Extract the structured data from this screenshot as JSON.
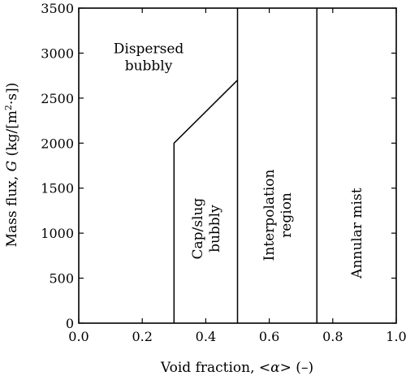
{
  "chart_data": {
    "type": "line",
    "title": "",
    "xlabel_parts": [
      "Void fraction, ",
      "<",
      "α",
      ">",
      " (–)"
    ],
    "ylabel_parts": [
      "Mass flux, ",
      "G",
      " (kg/[m",
      "2",
      "·s])"
    ],
    "xlim": [
      0.0,
      1.0
    ],
    "ylim": [
      0,
      3500
    ],
    "x_ticks": [
      0.0,
      0.2,
      0.4,
      0.6,
      0.8,
      1.0
    ],
    "x_tick_labels": [
      "0.0",
      "0.2",
      "0.4",
      "0.6",
      "0.8",
      "1.0"
    ],
    "y_ticks": [
      0,
      500,
      1000,
      1500,
      2000,
      2500,
      3000,
      3500
    ],
    "y_tick_labels": [
      "0",
      "500",
      "1000",
      "1500",
      "2000",
      "2500",
      "3000",
      "3500"
    ],
    "grid": false,
    "legend": "none",
    "line_color": "#000000",
    "boundaries": [
      {
        "points": [
          [
            0.3,
            0
          ],
          [
            0.3,
            2000
          ],
          [
            0.5,
            2700
          ]
        ]
      },
      {
        "points": [
          [
            0.5,
            0
          ],
          [
            0.5,
            3500
          ]
        ]
      },
      {
        "points": [
          [
            0.75,
            0
          ],
          [
            0.75,
            3500
          ]
        ]
      }
    ],
    "regions": [
      {
        "lines": [
          "Dispersed",
          "bubbly"
        ],
        "x": 0.22,
        "y": 2960,
        "rotation": 0
      },
      {
        "lines": [
          "Cap/slug",
          "bubbly"
        ],
        "x": 0.4,
        "y": 1050,
        "rotation": -90
      },
      {
        "lines": [
          "Interpolation",
          "region"
        ],
        "x": 0.625,
        "y": 1200,
        "rotation": -90
      },
      {
        "lines": [
          "Annular mist"
        ],
        "x": 0.875,
        "y": 1000,
        "rotation": -90
      }
    ]
  }
}
